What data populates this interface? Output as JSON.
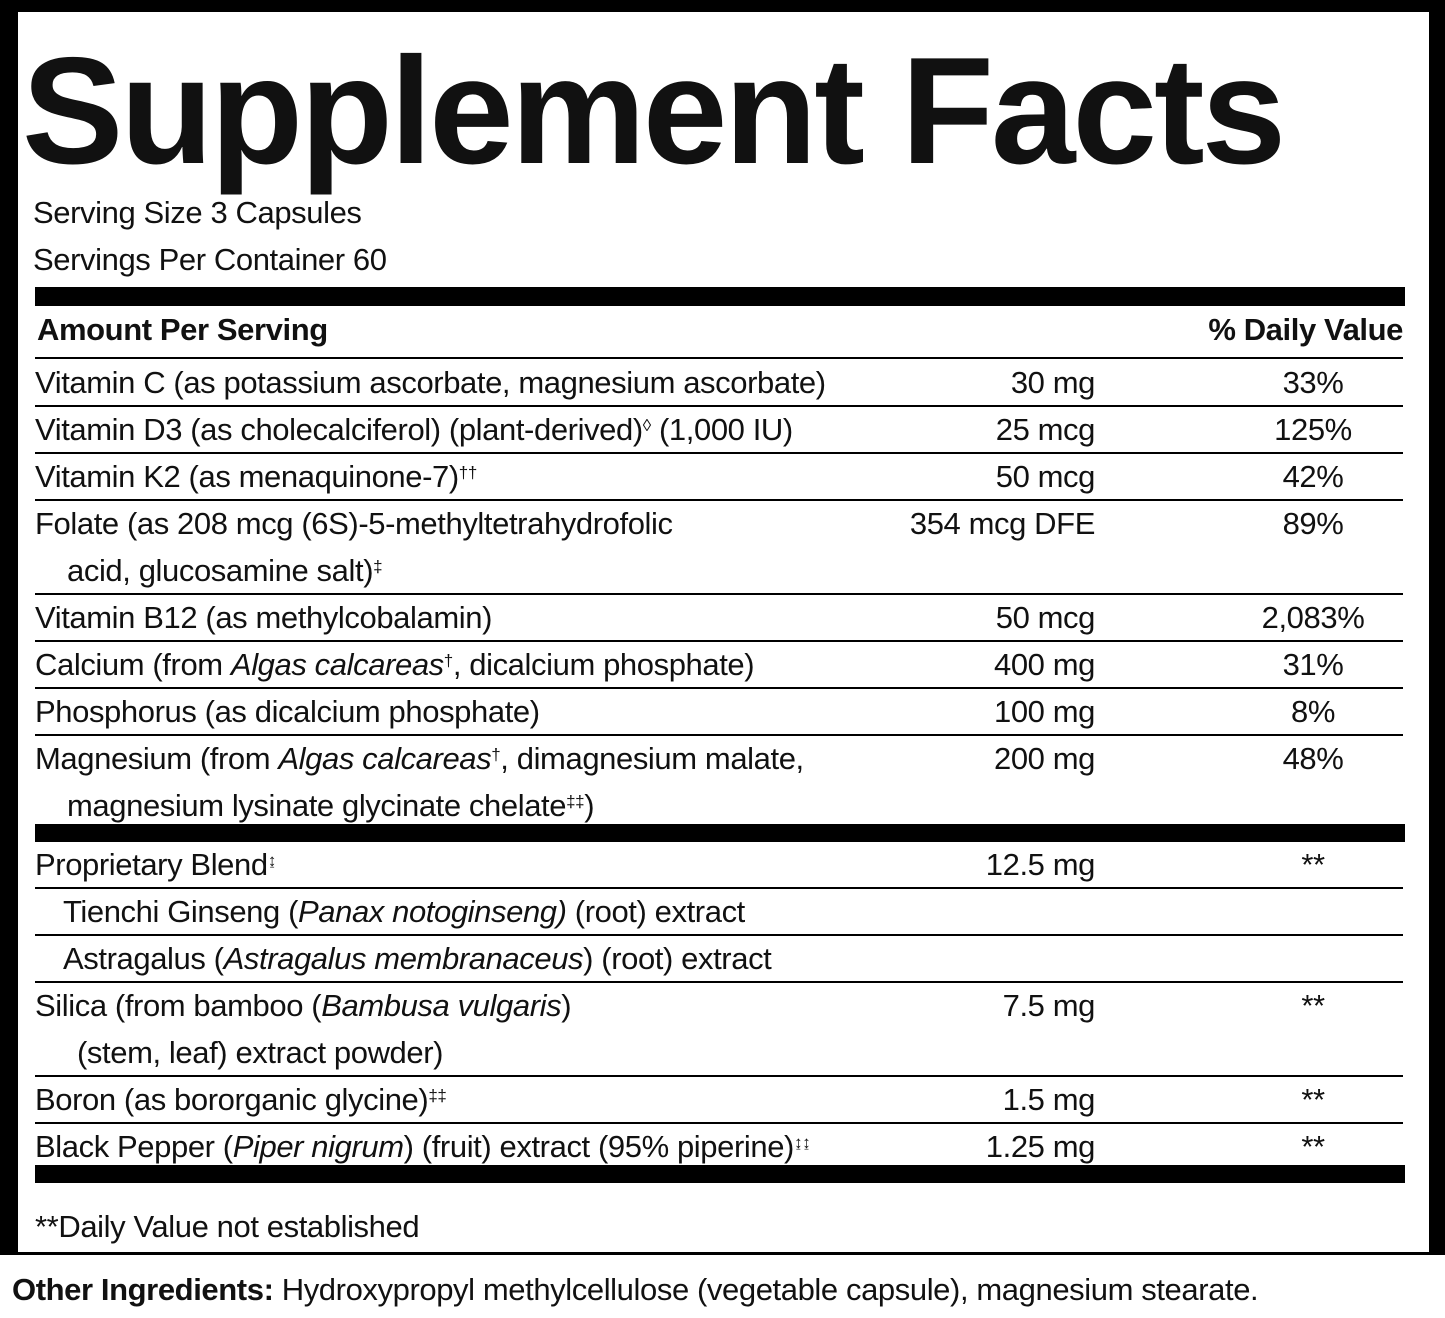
{
  "title": "Supplement Facts",
  "serving_size": "Serving Size 3 Capsules",
  "servings_per_container": "Servings Per Container 60",
  "header": {
    "amount": "Amount Per Serving",
    "daily_value": "% Daily Value"
  },
  "sections": [
    {
      "rows": [
        {
          "name": [
            [
              {
                "text": "Vitamin C (as potassium ascorbate, magnesium ascorbate)"
              }
            ]
          ],
          "amount": "30 mg",
          "daily_value": "33%"
        },
        {
          "name": [
            [
              {
                "text": "Vitamin D3 (as cholecalciferol) (plant-derived)"
              },
              {
                "text": "◊",
                "sup": true
              },
              {
                "text": " (1,000 IU)"
              }
            ]
          ],
          "amount": "25 mcg",
          "daily_value": "125%"
        },
        {
          "name": [
            [
              {
                "text": "Vitamin K2 (as menaquinone-7)"
              },
              {
                "text": "††",
                "sup": true
              }
            ]
          ],
          "amount": "50 mcg",
          "daily_value": "42%"
        },
        {
          "name": [
            [
              {
                "text": "Folate (as 208 mcg (6S)-5-methyltetrahydrofolic"
              }
            ],
            [
              {
                "text": "acid, glucosamine salt)"
              },
              {
                "text": "‡",
                "sup": true
              }
            ]
          ],
          "amount": "354 mcg DFE",
          "daily_value": "89%"
        },
        {
          "name": [
            [
              {
                "text": "Vitamin B12 (as methylcobalamin)"
              }
            ]
          ],
          "amount": "50 mcg",
          "daily_value": "2,083%"
        },
        {
          "name": [
            [
              {
                "text": "Calcium (from "
              },
              {
                "text": "Algas calcareas",
                "italic": true
              },
              {
                "text": "†",
                "sup": true
              },
              {
                "text": ", dicalcium phosphate)"
              }
            ]
          ],
          "amount": "400 mg",
          "daily_value": "31%"
        },
        {
          "name": [
            [
              {
                "text": "Phosphorus (as dicalcium phosphate)"
              }
            ]
          ],
          "amount": "100 mg",
          "daily_value": "8%"
        },
        {
          "name": [
            [
              {
                "text": "Magnesium (from "
              },
              {
                "text": "Algas calcareas",
                "italic": true
              },
              {
                "text": "†",
                "sup": true
              },
              {
                "text": ", dimagnesium malate,"
              }
            ],
            [
              {
                "text": "magnesium lysinate glycinate chelate"
              },
              {
                "text": "‡‡",
                "sup": true
              },
              {
                "text": ")"
              }
            ]
          ],
          "amount": "200 mg",
          "daily_value": "48%"
        }
      ]
    },
    {
      "rows": [
        {
          "name": [
            [
              {
                "text": "Proprietary Blend"
              },
              {
                "text": "↨",
                "sup": true
              }
            ]
          ],
          "amount": "12.5 mg",
          "daily_value": "**"
        },
        {
          "name": [
            [
              {
                "text": "Tienchi Ginseng ("
              },
              {
                "text": "Panax notoginseng)",
                "italic": true
              },
              {
                "text": " (root) extract"
              }
            ]
          ],
          "indent": true
        },
        {
          "name": [
            [
              {
                "text": "Astragalus ("
              },
              {
                "text": "Astragalus membranaceus",
                "italic": true
              },
              {
                "text": ") (root) extract"
              }
            ]
          ],
          "indent": true
        },
        {
          "name": [
            [
              {
                "text": "Silica (from bamboo ("
              },
              {
                "text": "Bambusa vulgaris",
                "italic": true
              },
              {
                "text": ")"
              }
            ],
            [
              {
                "text": "(stem, leaf) extract powder)"
              }
            ]
          ],
          "amount": "7.5 mg",
          "daily_value": "**"
        },
        {
          "name": [
            [
              {
                "text": "Boron (as bororganic glycine)"
              },
              {
                "text": "‡‡",
                "sup": true
              }
            ]
          ],
          "amount": "1.5 mg",
          "daily_value": "**"
        },
        {
          "name": [
            [
              {
                "text": "Black Pepper ("
              },
              {
                "text": "Piper nigrum",
                "italic": true
              },
              {
                "text": ") (fruit) extract (95% piperine)"
              },
              {
                "text": "↨↨",
                "sup": true
              }
            ]
          ],
          "amount": "1.25 mg",
          "daily_value": "**"
        }
      ]
    }
  ],
  "footnote": "**Daily Value not established",
  "other_ingredients": {
    "label": "Other Ingredients:",
    "text": " Hydroxypropyl methylcellulose (vegetable capsule), magnesium stearate."
  }
}
